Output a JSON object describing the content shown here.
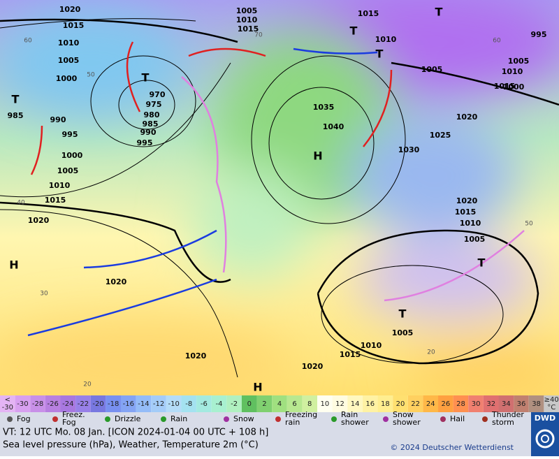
{
  "map": {
    "labels": [
      "1020",
      "1015",
      "1010",
      "1005",
      "1000",
      "985",
      "990",
      "995",
      "1000",
      "1005",
      "1010",
      "1015",
      "1020",
      "970",
      "975",
      "980",
      "985",
      "990",
      "995",
      "1020",
      "1005",
      "1010",
      "1015",
      "1015",
      "1010",
      "1005",
      "1035",
      "1040",
      "1030",
      "1025",
      "1020",
      "995",
      "1005",
      "1010",
      "1000",
      "1015",
      "1020",
      "1015",
      "1010",
      "1005",
      "1005",
      "1010",
      "1015",
      "1020",
      "1020"
    ],
    "highs_lows": [
      "T",
      "T",
      "H",
      "H",
      "T",
      "T",
      "T",
      "T",
      "T",
      "H"
    ],
    "grid_labels": [
      "60",
      "50",
      "40",
      "30",
      "20",
      "70",
      "60",
      "50",
      "20"
    ]
  },
  "scale": {
    "first": {
      "top": "<",
      "bottom": "-30"
    },
    "values": [
      -30,
      -28,
      -26,
      -24,
      -22,
      -20,
      -18,
      -16,
      -14,
      -12,
      -10,
      -8,
      -6,
      -4,
      -2,
      0,
      2,
      4,
      6,
      8,
      10,
      12,
      14,
      16,
      18,
      20,
      22,
      24,
      26,
      28,
      30,
      32,
      34,
      36,
      38
    ],
    "last": {
      "top": "≥40",
      "bottom": "°C"
    },
    "first_color": "#e4b4f4",
    "colors": [
      "#d8a0f0",
      "#c890e8",
      "#b880e0",
      "#a878e0",
      "#9880e8",
      "#7878e0",
      "#7890f0",
      "#84a4f4",
      "#94bcf8",
      "#a4ccf8",
      "#b4dcf8",
      "#a4e2f0",
      "#a4eae0",
      "#a8f0d0",
      "#b0f0c0",
      "#60c060",
      "#80d070",
      "#a0e080",
      "#b8e890",
      "#d0f0a0",
      "#fffff0",
      "#fffce0",
      "#fff8c0",
      "#fff2a4",
      "#ffee90",
      "#ffe070",
      "#ffd060",
      "#ffb848",
      "#ffa040",
      "#ff9050",
      "#f08070",
      "#e07070",
      "#d07070",
      "#c08070",
      "#b09080"
    ],
    "last_color": "#c8c8c8"
  },
  "legend": [
    "Fog",
    "Freez.\nFog",
    "Drizzle",
    "Rain",
    "Snow",
    "Freezing\nrain",
    "Rain\nshower",
    "Snow\nshower",
    "Hail",
    "Thunder\nstorm"
  ],
  "footer": {
    "valid_time": "VT: 12 UTC Mo.  08 Jan. [ICON 2024-01-04  00 UTC + 108 h]",
    "description": "Sea level pressure (hPa), Weather, Temperature 2m (°C)",
    "copyright": "© 2024 Deutscher Wetterdienst",
    "logo": "DWD"
  }
}
